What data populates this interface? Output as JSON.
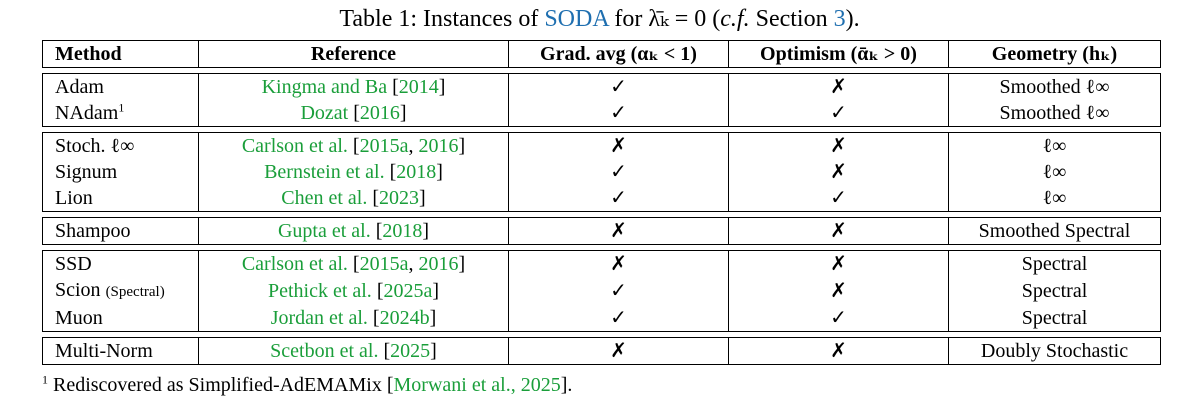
{
  "caption": [
    "Table 1: Instances of ",
    "SODA",
    " for λ̄ₖ = 0 (",
    "c.f.",
    " Section ",
    "3",
    ")."
  ],
  "table": {
    "header": [
      "Method",
      "Reference",
      "Grad. avg (αₖ < 1)",
      "Optimism (ᾱₖ > 0)",
      "Geometry (hₖ)"
    ],
    "groups": [
      {
        "rows": [
          {
            "method": "Adam",
            "reference": [
              "Kingma and Ba",
              " [",
              "2014",
              "]"
            ],
            "grad_avg": "✓",
            "optimism": "✗",
            "geometry": "Smoothed ℓ∞"
          },
          {
            "method": "NAdam",
            "method_sup": "1",
            "reference": [
              "Dozat",
              " [",
              "2016",
              "]"
            ],
            "grad_avg": "✓",
            "optimism": "✓",
            "geometry": "Smoothed ℓ∞"
          }
        ]
      },
      {
        "rows": [
          {
            "method": "Stoch. ℓ∞",
            "reference": [
              "Carlson et al.",
              " [",
              "2015a",
              ", ",
              "2016",
              "]"
            ],
            "grad_avg": "✗",
            "optimism": "✗",
            "geometry": "ℓ∞"
          },
          {
            "method": "Signum",
            "reference": [
              "Bernstein et al.",
              " [",
              "2018",
              "]"
            ],
            "grad_avg": "✓",
            "optimism": "✗",
            "geometry": "ℓ∞"
          },
          {
            "method": "Lion",
            "reference": [
              "Chen et al.",
              " [",
              "2023",
              "]"
            ],
            "grad_avg": "✓",
            "optimism": "✓",
            "geometry": "ℓ∞"
          }
        ]
      },
      {
        "rows": [
          {
            "method": "Shampoo",
            "reference": [
              "Gupta et al.",
              " [",
              "2018",
              "]"
            ],
            "grad_avg": "✗",
            "optimism": "✗",
            "geometry": "Smoothed Spectral"
          }
        ]
      },
      {
        "rows": [
          {
            "method": "SSD",
            "reference": [
              "Carlson et al.",
              " [",
              "2015a",
              ", ",
              "2016",
              "]"
            ],
            "grad_avg": "✗",
            "optimism": "✗",
            "geometry": "Spectral"
          },
          {
            "method": "Scion",
            "method_small": "(Spectral)",
            "reference": [
              "Pethick et al.",
              " [",
              "2025a",
              "]"
            ],
            "grad_avg": "✓",
            "optimism": "✗",
            "geometry": "Spectral"
          },
          {
            "method": "Muon",
            "reference": [
              "Jordan et al.",
              " [",
              "2024b",
              "]"
            ],
            "grad_avg": "✓",
            "optimism": "✓",
            "geometry": "Spectral"
          }
        ]
      },
      {
        "rows": [
          {
            "method": "Multi-Norm",
            "reference": [
              "Scetbon et al.",
              " [",
              "2025",
              "]"
            ],
            "grad_avg": "✗",
            "optimism": "✗",
            "geometry": "Doubly Stochastic"
          }
        ]
      }
    ]
  },
  "footnote": [
    "1",
    " Rediscovered as Simplified-AdEMAMix [",
    "Morwani et al., 2025",
    "]."
  ]
}
